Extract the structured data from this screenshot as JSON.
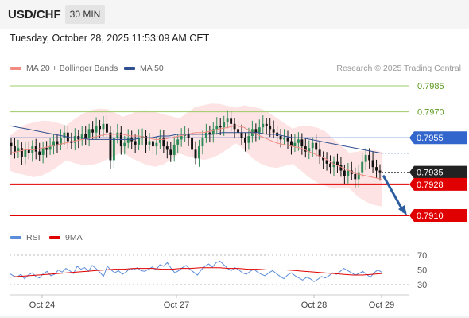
{
  "header": {
    "symbol": "USD/CHF",
    "timeframe": "30 MIN"
  },
  "timestamp": "Tuesday, October 28, 2025 11:53:09 AM CET",
  "legend": {
    "items": [
      {
        "label": "MA 20 + Bollinger Bands",
        "color": "#f28b82"
      },
      {
        "label": "MA 50",
        "color": "#2f4f8f"
      }
    ],
    "credit": "Research © 2025 Trading Central"
  },
  "rsi_legend": {
    "items": [
      {
        "label": "RSI",
        "color": "#5b8dd9"
      },
      {
        "label": "9MA",
        "color": "#e00000"
      }
    ]
  },
  "colors": {
    "up": "#2e8b57",
    "down": "#111111",
    "bollinger": "#fde3e3",
    "ma20": "#f28b82",
    "ma50": "#2f4f8f",
    "support": "#e00000",
    "resistance": "#7cb342",
    "pivot": "#3366cc",
    "arrow": "#2c5d9e"
  },
  "chart_data": {
    "type": "candlestick",
    "x_ticks": [
      "Oct 24",
      "Oct 27",
      "Oct 28",
      "Oct 29"
    ],
    "ylim": [
      0.79,
      0.7995
    ],
    "price_levels": [
      {
        "value": "0.7985",
        "role": "resistance"
      },
      {
        "value": "0.7970",
        "role": "resistance"
      },
      {
        "value": "0.7955",
        "role": "pivot"
      },
      {
        "value": "0.7935",
        "role": "last"
      },
      {
        "value": "0.7928",
        "role": "support"
      },
      {
        "value": "0.7910",
        "role": "target"
      }
    ],
    "close_series": [
      0.795,
      0.7947,
      0.7949,
      0.7944,
      0.7948,
      0.7946,
      0.795,
      0.7947,
      0.7945,
      0.7949,
      0.7948,
      0.795,
      0.7953,
      0.7951,
      0.7955,
      0.7958,
      0.7953,
      0.7952,
      0.7956,
      0.7954,
      0.7957,
      0.7955,
      0.796,
      0.7958,
      0.7962,
      0.796,
      0.7963,
      0.7958,
      0.7942,
      0.7955,
      0.7958,
      0.795,
      0.7952,
      0.7955,
      0.7953,
      0.7951,
      0.7955,
      0.7956,
      0.7951,
      0.7953,
      0.795,
      0.7952,
      0.7955,
      0.795,
      0.7948,
      0.7945,
      0.7951,
      0.7954,
      0.7956,
      0.7957,
      0.7955,
      0.7948,
      0.7943,
      0.795,
      0.7955,
      0.7958,
      0.7957,
      0.796,
      0.7962,
      0.7961,
      0.7964,
      0.7966,
      0.7963,
      0.796,
      0.7958,
      0.7955,
      0.7952,
      0.7956,
      0.796,
      0.7958,
      0.7961,
      0.7963,
      0.7962,
      0.796,
      0.7958,
      0.7956,
      0.7954,
      0.7955,
      0.7953,
      0.795,
      0.7952,
      0.7954,
      0.795,
      0.7947,
      0.7949,
      0.7952,
      0.7948,
      0.7944,
      0.7942,
      0.794,
      0.7938,
      0.7941,
      0.7939,
      0.7936,
      0.7933,
      0.7936,
      0.7934,
      0.7931,
      0.7935,
      0.7941,
      0.7945,
      0.7942,
      0.7938,
      0.7936,
      0.7935
    ],
    "ma20_series": [
      0.7946,
      0.7947,
      0.7948,
      0.7948,
      0.7949,
      0.795,
      0.7951,
      0.7952,
      0.7953,
      0.7954,
      0.7955,
      0.7956,
      0.7957,
      0.7957,
      0.7957,
      0.7956,
      0.7956,
      0.7955,
      0.7954,
      0.7954,
      0.7955,
      0.7956,
      0.7957,
      0.7958,
      0.7958,
      0.7959,
      0.796,
      0.7961,
      0.7962,
      0.7961,
      0.7958,
      0.7956,
      0.7954,
      0.7952,
      0.7951,
      0.795,
      0.7949,
      0.7947,
      0.7945,
      0.7943,
      0.794,
      0.7938,
      0.7936,
      0.7934,
      0.7933,
      0.7932,
      0.7931
    ],
    "ma50_series": [
      0.7962,
      0.7961,
      0.796,
      0.7959,
      0.7958,
      0.7957,
      0.7956,
      0.7955,
      0.7955,
      0.7954,
      0.7954,
      0.7954,
      0.7954,
      0.7954,
      0.7954,
      0.7955,
      0.7955,
      0.7956,
      0.7956,
      0.7957,
      0.7957,
      0.7957,
      0.7957,
      0.7957,
      0.7958,
      0.7958,
      0.7958,
      0.7958,
      0.7958,
      0.7957,
      0.7957,
      0.7956,
      0.7955,
      0.7955,
      0.7954,
      0.7953,
      0.7952,
      0.7951,
      0.795,
      0.7949,
      0.7948,
      0.7947,
      0.7946
    ],
    "rsi": {
      "ylim": [
        20,
        80
      ],
      "ticks": [
        "70",
        "50",
        "30"
      ],
      "rsi_series": [
        45,
        42,
        40,
        44,
        38,
        43,
        46,
        41,
        39,
        45,
        48,
        42,
        44,
        50,
        47,
        52,
        49,
        45,
        55,
        51,
        53,
        48,
        56,
        52,
        47,
        41,
        55,
        50,
        46,
        49,
        44,
        47,
        52,
        50,
        53,
        49,
        48,
        51,
        54,
        50,
        57,
        55,
        60,
        52,
        46,
        49,
        53,
        56,
        51,
        47,
        43,
        50,
        55,
        58,
        54,
        60,
        62,
        57,
        52,
        49,
        53,
        50,
        46,
        44,
        48,
        51,
        47,
        44,
        42,
        46,
        49,
        45,
        41,
        38,
        43,
        46,
        42,
        39,
        36,
        40,
        38,
        34,
        37,
        41,
        39,
        42,
        46,
        44,
        48,
        52,
        49,
        46,
        43,
        45,
        48,
        44,
        40,
        46,
        50,
        47
      ],
      "ma9_series": [
        40,
        41,
        42,
        43,
        44,
        45,
        46,
        47,
        48,
        49,
        50,
        51,
        51,
        52,
        52,
        52,
        51,
        51,
        52,
        52,
        53,
        53,
        53,
        52,
        52,
        51,
        51,
        50,
        50,
        50,
        49,
        48,
        47,
        46,
        45,
        44,
        43,
        43,
        44,
        45
      ]
    }
  }
}
